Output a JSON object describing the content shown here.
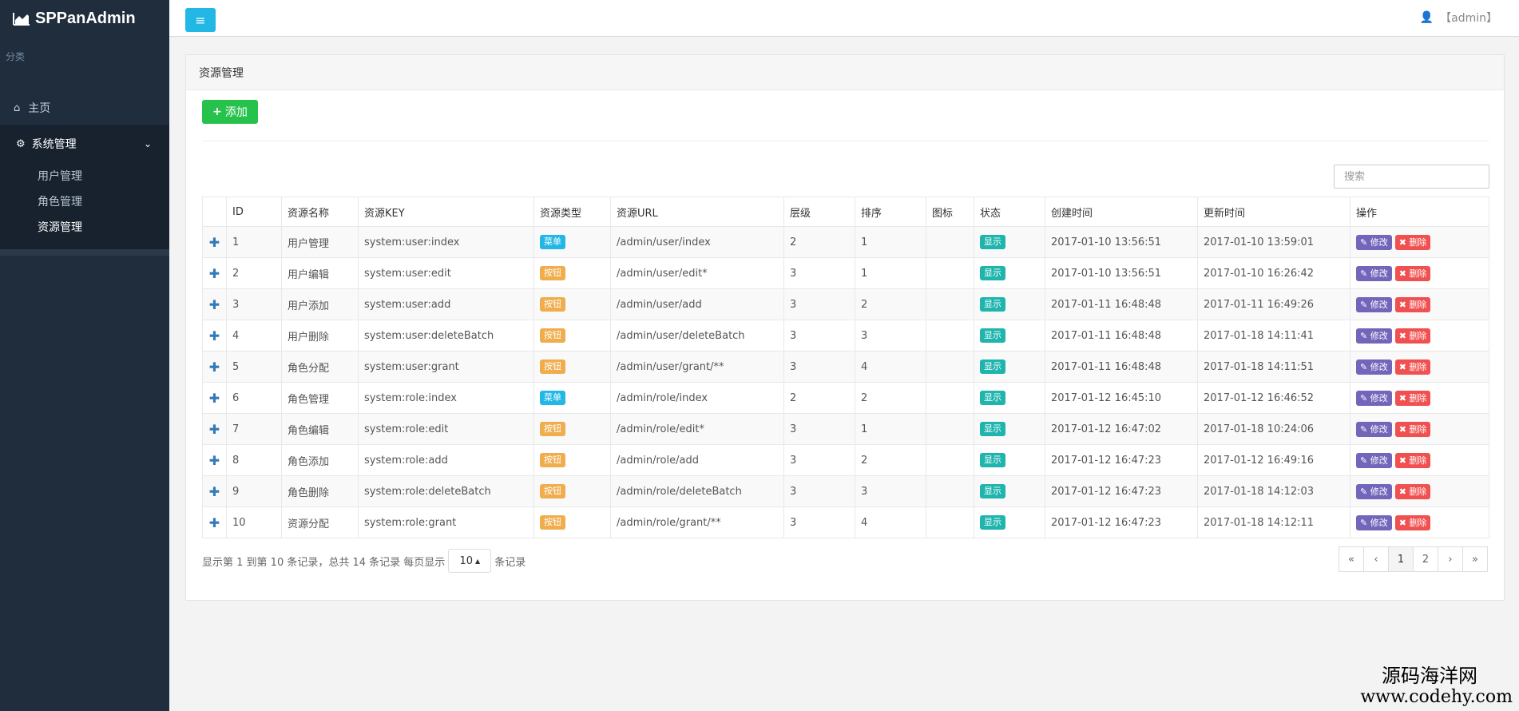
{
  "brand": {
    "title": "SPPanAdmin",
    "icon": "area-chart-icon"
  },
  "sidebar": {
    "category_label": "分类",
    "home": {
      "label": "主页",
      "icon": "home-icon"
    },
    "group": {
      "label": "系统管理",
      "icon": "gear-icon",
      "items": [
        {
          "label": "用户管理"
        },
        {
          "label": "角色管理"
        },
        {
          "label": "资源管理",
          "active": true
        }
      ]
    }
  },
  "topbar": {
    "toggle_icon": "menu-icon",
    "user_icon": "user-icon",
    "user": "【admin】"
  },
  "panel": {
    "title": "资源管理"
  },
  "toolbar": {
    "add_label": "添加",
    "search_placeholder": "搜索"
  },
  "table": {
    "headers": [
      "",
      "ID",
      "资源名称",
      "资源KEY",
      "资源类型",
      "资源URL",
      "层级",
      "排序",
      "图标",
      "状态",
      "创建时间",
      "更新时间",
      "操作"
    ],
    "rows": [
      {
        "id": "1",
        "name": "用户管理",
        "key": "system:user:index",
        "type": "菜单",
        "url": "/admin/user/index",
        "level": "2",
        "sort": "1",
        "icon": "",
        "status": "显示",
        "created": "2017-01-10 13:56:51",
        "updated": "2017-01-10 13:59:01"
      },
      {
        "id": "2",
        "name": "用户编辑",
        "key": "system:user:edit",
        "type": "按钮",
        "url": "/admin/user/edit*",
        "level": "3",
        "sort": "1",
        "icon": "",
        "status": "显示",
        "created": "2017-01-10 13:56:51",
        "updated": "2017-01-10 16:26:42"
      },
      {
        "id": "3",
        "name": "用户添加",
        "key": "system:user:add",
        "type": "按钮",
        "url": "/admin/user/add",
        "level": "3",
        "sort": "2",
        "icon": "",
        "status": "显示",
        "created": "2017-01-11 16:48:48",
        "updated": "2017-01-11 16:49:26"
      },
      {
        "id": "4",
        "name": "用户删除",
        "key": "system:user:deleteBatch",
        "type": "按钮",
        "url": "/admin/user/deleteBatch",
        "level": "3",
        "sort": "3",
        "icon": "",
        "status": "显示",
        "created": "2017-01-11 16:48:48",
        "updated": "2017-01-18 14:11:41"
      },
      {
        "id": "5",
        "name": "角色分配",
        "key": "system:user:grant",
        "type": "按钮",
        "url": "/admin/user/grant/**",
        "level": "3",
        "sort": "4",
        "icon": "",
        "status": "显示",
        "created": "2017-01-11 16:48:48",
        "updated": "2017-01-18 14:11:51"
      },
      {
        "id": "6",
        "name": "角色管理",
        "key": "system:role:index",
        "type": "菜单",
        "url": "/admin/role/index",
        "level": "2",
        "sort": "2",
        "icon": "",
        "status": "显示",
        "created": "2017-01-12 16:45:10",
        "updated": "2017-01-12 16:46:52"
      },
      {
        "id": "7",
        "name": "角色编辑",
        "key": "system:role:edit",
        "type": "按钮",
        "url": "/admin/role/edit*",
        "level": "3",
        "sort": "1",
        "icon": "",
        "status": "显示",
        "created": "2017-01-12 16:47:02",
        "updated": "2017-01-18 10:24:06"
      },
      {
        "id": "8",
        "name": "角色添加",
        "key": "system:role:add",
        "type": "按钮",
        "url": "/admin/role/add",
        "level": "3",
        "sort": "2",
        "icon": "",
        "status": "显示",
        "created": "2017-01-12 16:47:23",
        "updated": "2017-01-12 16:49:16"
      },
      {
        "id": "9",
        "name": "角色删除",
        "key": "system:role:deleteBatch",
        "type": "按钮",
        "url": "/admin/role/deleteBatch",
        "level": "3",
        "sort": "3",
        "icon": "",
        "status": "显示",
        "created": "2017-01-12 16:47:23",
        "updated": "2017-01-18 14:12:03"
      },
      {
        "id": "10",
        "name": "资源分配",
        "key": "system:role:grant",
        "type": "按钮",
        "url": "/admin/role/grant/**",
        "level": "3",
        "sort": "4",
        "icon": "",
        "status": "显示",
        "created": "2017-01-12 16:47:23",
        "updated": "2017-01-18 14:12:11"
      }
    ],
    "edit_label": "修改",
    "delete_label": "删除",
    "expand_icon": "plus-icon"
  },
  "pagination": {
    "info_prefix": "显示第 1 到第 10 条记录，总共 14 条记录 每页显示",
    "page_size": "10",
    "info_suffix": "条记录",
    "pages": [
      "«",
      "‹",
      "1",
      "2",
      "›",
      "»"
    ],
    "current": "1"
  },
  "watermark": {
    "line1": "源码海洋网",
    "line2": "www.codehy.com"
  },
  "colors": {
    "sidebar": "#1f2d3d",
    "primary": "#23b7e5",
    "success": "#27c24c",
    "warning": "#f0ad4e",
    "status": "#1fb5ad",
    "edit": "#7266ba",
    "danger": "#f05050"
  }
}
